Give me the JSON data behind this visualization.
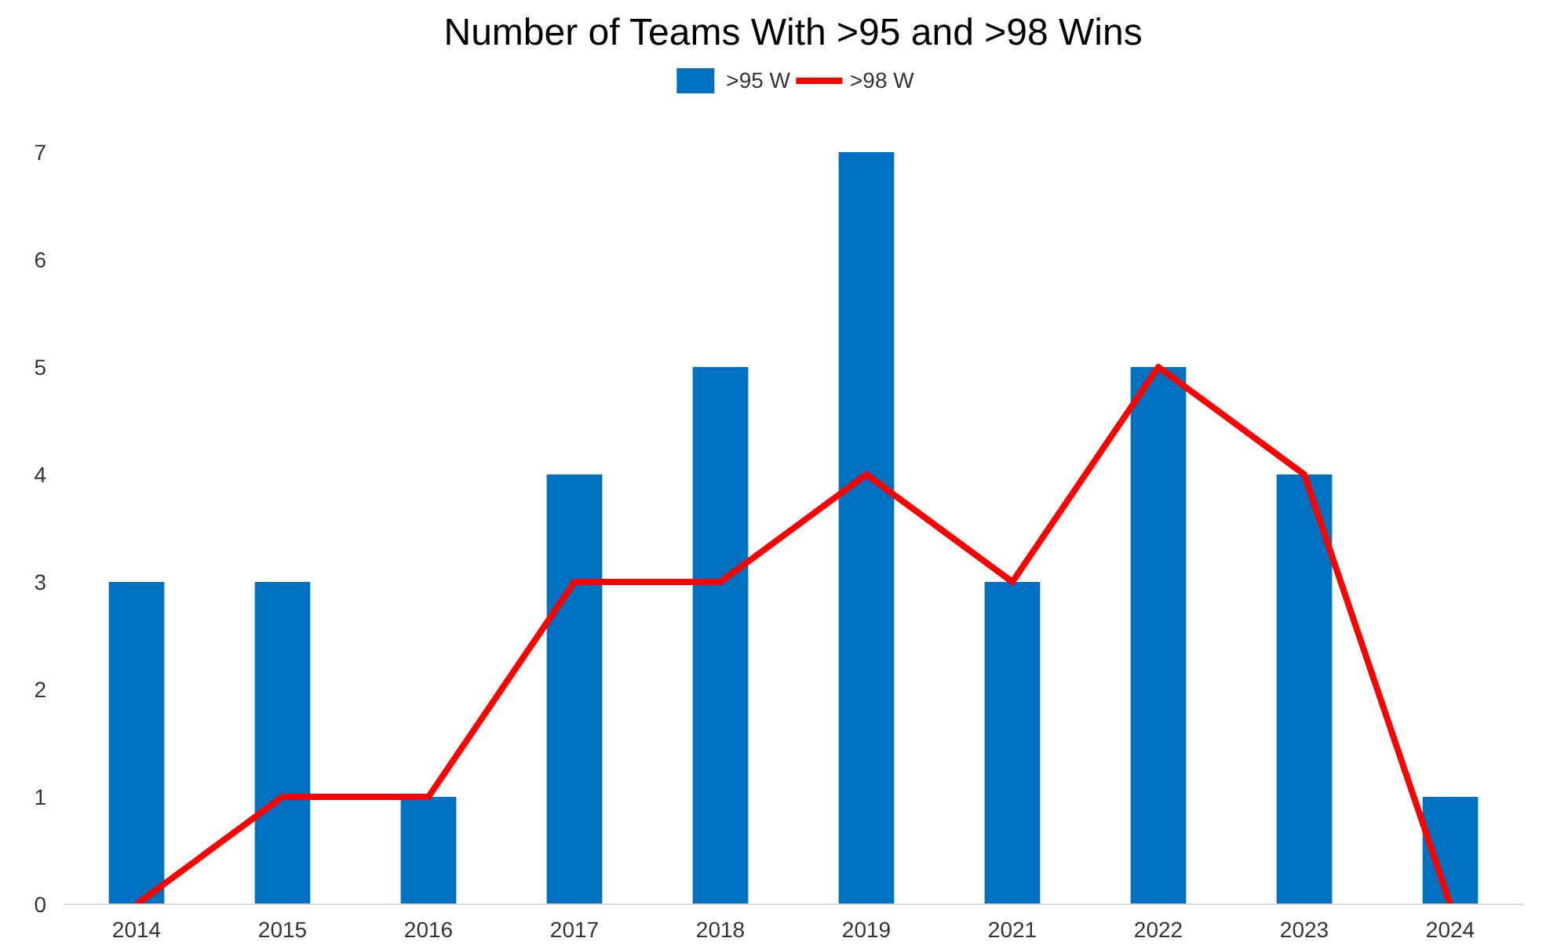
{
  "chart_data": {
    "type": "bar",
    "title": "Number of Teams With >95 and >98 Wins",
    "categories": [
      "2014",
      "2015",
      "2016",
      "2017",
      "2018",
      "2019",
      "2021",
      "2022",
      "2023",
      "2024"
    ],
    "series": [
      {
        "name": ">95 W",
        "color": "#0070c0",
        "values": [
          3,
          3,
          1,
          4,
          5,
          7,
          3,
          5,
          4,
          1
        ]
      },
      {
        "name": ">98 W",
        "type": "line",
        "color": "#ff0000",
        "values": [
          0,
          1,
          1,
          3,
          3,
          4,
          3,
          5,
          4,
          0
        ]
      }
    ],
    "ylim": [
      0,
      7
    ],
    "yticks": [
      0,
      1,
      2,
      3,
      4,
      5,
      6,
      7
    ],
    "grid": false,
    "legend": "top",
    "marker": "none",
    "line_style": "solid"
  }
}
